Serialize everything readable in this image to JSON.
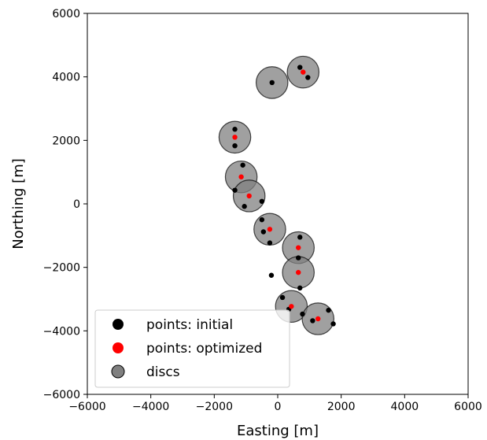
{
  "chart_data": {
    "type": "scatter",
    "xlabel": "Easting [m]",
    "ylabel": "Northing [m]",
    "xlim": [
      -6000,
      6000
    ],
    "ylim": [
      -6000,
      6000
    ],
    "xticks": [
      -6000,
      -4000,
      -2000,
      0,
      2000,
      4000,
      6000
    ],
    "yticks": [
      -6000,
      -4000,
      -2000,
      0,
      2000,
      4000,
      6000
    ],
    "xtick_labels": [
      "−6000",
      "−4000",
      "−2000",
      "0",
      "2000",
      "4000",
      "6000"
    ],
    "ytick_labels": [
      "−6000",
      "−4000",
      "−2000",
      "0",
      "2000",
      "4000",
      "6000"
    ],
    "grid": false,
    "legend_position": "lower-left",
    "legend": [
      {
        "label": "points: initial",
        "color": "#000000"
      },
      {
        "label": "points: optimized",
        "color": "#ff0000"
      },
      {
        "label": "discs",
        "color": "#808080"
      }
    ],
    "disc_radius": 500,
    "discs": [
      [
        800,
        4150
      ],
      [
        -180,
        3820
      ],
      [
        -1350,
        2100
      ],
      [
        -1150,
        850
      ],
      [
        -900,
        250
      ],
      [
        -250,
        -800
      ],
      [
        650,
        -1380
      ],
      [
        650,
        -2160
      ],
      [
        430,
        -3230
      ],
      [
        1270,
        -3620
      ]
    ],
    "series": [
      {
        "name": "points: initial",
        "color": "#000000",
        "points": [
          [
            700,
            4300
          ],
          [
            950,
            3980
          ],
          [
            -180,
            3820
          ],
          [
            -1350,
            2350
          ],
          [
            -1350,
            1830
          ],
          [
            -1100,
            1220
          ],
          [
            -1350,
            430
          ],
          [
            -1050,
            -80
          ],
          [
            -500,
            80
          ],
          [
            -500,
            -500
          ],
          [
            -450,
            -880
          ],
          [
            -250,
            -1230
          ],
          [
            700,
            -1050
          ],
          [
            650,
            -1700
          ],
          [
            -200,
            -2250
          ],
          [
            700,
            -2650
          ],
          [
            150,
            -2950
          ],
          [
            350,
            -3320
          ],
          [
            780,
            -3470
          ],
          [
            1100,
            -3680
          ],
          [
            1600,
            -3350
          ],
          [
            1750,
            -3780
          ]
        ]
      },
      {
        "name": "points: optimized",
        "color": "#ff0000",
        "points": [
          [
            800,
            4150
          ],
          [
            -1350,
            2100
          ],
          [
            -1150,
            850
          ],
          [
            -900,
            250
          ],
          [
            -250,
            -800
          ],
          [
            650,
            -1380
          ],
          [
            650,
            -2160
          ],
          [
            430,
            -3230
          ],
          [
            1270,
            -3620
          ]
        ]
      }
    ]
  }
}
